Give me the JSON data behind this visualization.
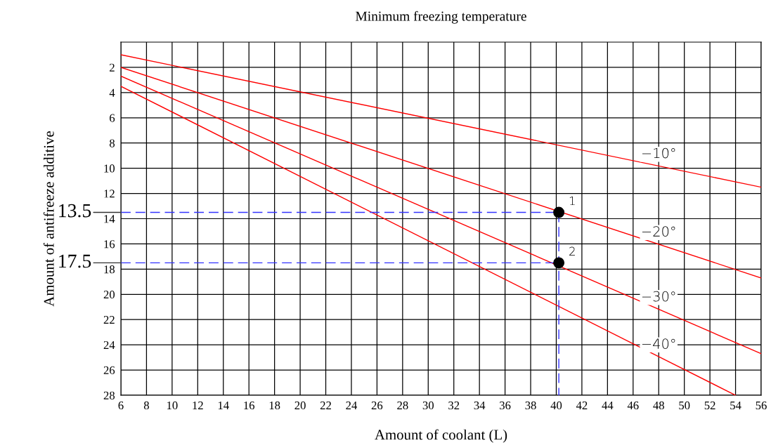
{
  "chart_data": {
    "type": "line",
    "title": "Minimum freezing temperature",
    "xlabel": "Amount of coolant (L)",
    "ylabel": "Amount of antifreeze additive",
    "xlim": [
      6,
      56
    ],
    "xticks": [
      6,
      8,
      10,
      12,
      14,
      16,
      18,
      20,
      22,
      24,
      26,
      28,
      30,
      32,
      34,
      36,
      38,
      40,
      42,
      44,
      46,
      48,
      50,
      52,
      54,
      56
    ],
    "ylim": [
      28,
      0
    ],
    "yticks": [
      2,
      4,
      6,
      8,
      10,
      12,
      14,
      16,
      18,
      20,
      22,
      24,
      26,
      28
    ],
    "grid": true,
    "marker": "none",
    "line_style": "solid",
    "series": [
      {
        "name": "−10°",
        "color": "#ff0000",
        "x": [
          6,
          56
        ],
        "values": [
          1,
          11.5
        ]
      },
      {
        "name": "−20°",
        "color": "#ff0000",
        "x": [
          6,
          56
        ],
        "values": [
          2,
          18.7
        ]
      },
      {
        "name": "−30°",
        "color": "#ff0000",
        "x": [
          6,
          56
        ],
        "values": [
          2.7,
          24.7
        ]
      },
      {
        "name": "−40°",
        "color": "#ff0000",
        "x": [
          6,
          54
        ],
        "values": [
          3.5,
          28
        ]
      },
      {
        "color": "#3333ff",
        "line_style": "dashed",
        "x": [
          6,
          40.2
        ],
        "values": [
          13.5,
          13.5
        ],
        "value_labels": [
          "13.5",
          null
        ]
      },
      {
        "color": "#3333ff",
        "line_style": "dashed",
        "x": [
          6,
          40.2
        ],
        "values": [
          17.5,
          17.5
        ],
        "value_labels": [
          "17.5",
          null
        ]
      },
      {
        "color": "#3333ff",
        "line_style": "dashed",
        "x": [
          40.2,
          40.2
        ],
        "values": [
          13.5,
          28
        ]
      },
      {
        "type": "scatter",
        "name": "1",
        "color": "#000000",
        "marker": "circle",
        "x": [
          40.2
        ],
        "values": [
          13.5
        ]
      },
      {
        "type": "scatter",
        "name": "2",
        "color": "#000000",
        "marker": "circle",
        "x": [
          40.2
        ],
        "values": [
          17.5
        ]
      }
    ]
  }
}
